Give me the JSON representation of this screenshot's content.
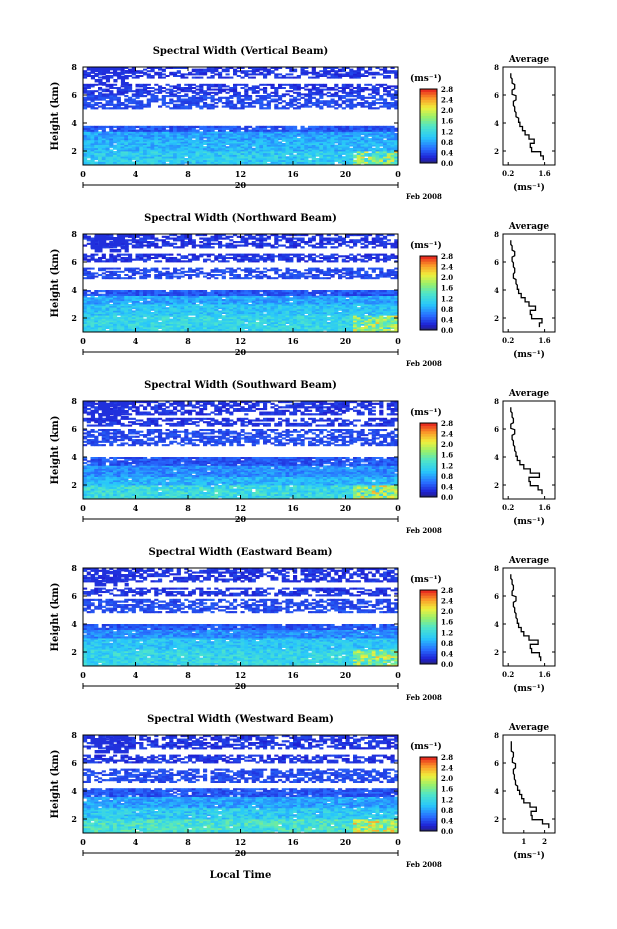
{
  "chart_data": [
    {
      "type": "heatmap",
      "title": "Spectral Width (Vertical Beam)",
      "ylabel": "Height (km)",
      "x_ticks": [
        "0",
        "4",
        "8",
        "12",
        "16",
        "20",
        "0"
      ],
      "y_ticks": [
        "2",
        "4",
        "6",
        "8"
      ],
      "xlim": [
        0,
        24
      ],
      "ylim": [
        1,
        8
      ],
      "day_label": "20",
      "date_label": "Feb 2008",
      "colorbar": {
        "unit": "(ms⁻¹)",
        "ticks": [
          "0.0",
          "0.4",
          "0.8",
          "1.2",
          "1.6",
          "2.0",
          "2.4",
          "2.8"
        ],
        "range": [
          0,
          2.8
        ]
      },
      "profile": {
        "title": "Average",
        "xlabel": "(ms⁻¹)",
        "x_ticks": [
          "0.2",
          "1.6"
        ],
        "y_ticks": [
          "2",
          "4",
          "6",
          "8"
        ],
        "xlim": [
          0,
          2.0
        ],
        "ylim": [
          1,
          8
        ],
        "height": [
          1.5,
          1.8,
          2.1,
          2.4,
          2.7,
          3.0,
          3.3,
          3.6,
          3.9,
          4.2,
          4.6,
          5.0,
          5.4,
          5.8,
          6.2,
          6.6,
          7.0,
          7.4
        ],
        "values": [
          1.55,
          1.45,
          1.1,
          1.05,
          1.2,
          1.0,
          0.85,
          0.75,
          0.65,
          0.6,
          0.5,
          0.45,
          0.4,
          0.5,
          0.35,
          0.45,
          0.35,
          0.3
        ]
      },
      "layers": [
        {
          "h0": 1.0,
          "h1": 2.0,
          "v0": 0.8,
          "v1": 1.3
        },
        {
          "h0": 2.0,
          "h1": 2.8,
          "v0": 0.7,
          "v1": 1.1
        },
        {
          "h0": 2.8,
          "h1": 3.4,
          "v0": 0.6,
          "v1": 1.0
        },
        {
          "h0": 3.4,
          "h1": 3.8,
          "v0": 0.3,
          "v1": 0.6
        },
        {
          "h0": 5.0,
          "h1": 6.0,
          "v0": 0.3,
          "v1": 0.5
        },
        {
          "h0": 6.0,
          "h1": 6.8,
          "v0": 0.2,
          "v1": 0.4
        },
        {
          "h0": 7.2,
          "h1": 8.0,
          "v0": 0.2,
          "v1": 0.4
        }
      ]
    },
    {
      "type": "heatmap",
      "title": "Spectral Width (Northward Beam)",
      "ylabel": "Height (km)",
      "x_ticks": [
        "0",
        "4",
        "8",
        "12",
        "16",
        "20",
        "0"
      ],
      "y_ticks": [
        "2",
        "4",
        "6",
        "8"
      ],
      "xlim": [
        0,
        24
      ],
      "ylim": [
        1,
        8
      ],
      "day_label": "20",
      "date_label": "Feb 2008",
      "colorbar": {
        "unit": "(ms⁻¹)",
        "ticks": [
          "0.0",
          "0.4",
          "0.8",
          "1.2",
          "1.6",
          "2.0",
          "2.4",
          "2.8"
        ],
        "range": [
          0,
          2.8
        ]
      },
      "profile": {
        "title": "Average",
        "xlabel": "(ms⁻¹)",
        "x_ticks": [
          "0.2",
          "1.6"
        ],
        "y_ticks": [
          "2",
          "4",
          "6",
          "8"
        ],
        "xlim": [
          0,
          2.0
        ],
        "ylim": [
          1,
          8
        ],
        "height": [
          1.5,
          1.8,
          2.1,
          2.4,
          2.7,
          3.0,
          3.3,
          3.6,
          3.9,
          4.2,
          4.6,
          5.0,
          5.4,
          5.8,
          6.2,
          6.6,
          7.0,
          7.4
        ],
        "values": [
          1.4,
          1.5,
          1.1,
          1.05,
          1.25,
          1.0,
          0.85,
          0.7,
          0.6,
          0.55,
          0.5,
          0.4,
          0.45,
          0.4,
          0.35,
          0.45,
          0.35,
          0.3
        ]
      },
      "layers": [
        {
          "h0": 1.0,
          "h1": 2.2,
          "v0": 0.9,
          "v1": 1.4
        },
        {
          "h0": 2.2,
          "h1": 3.0,
          "v0": 0.8,
          "v1": 1.2
        },
        {
          "h0": 3.0,
          "h1": 3.6,
          "v0": 0.6,
          "v1": 1.0
        },
        {
          "h0": 3.6,
          "h1": 4.0,
          "v0": 0.3,
          "v1": 0.6
        },
        {
          "h0": 4.8,
          "h1": 5.6,
          "v0": 0.3,
          "v1": 0.5
        },
        {
          "h0": 6.0,
          "h1": 6.6,
          "v0": 0.2,
          "v1": 0.4
        },
        {
          "h0": 7.0,
          "h1": 8.0,
          "v0": 0.2,
          "v1": 0.4
        }
      ]
    },
    {
      "type": "heatmap",
      "title": "Spectral Width (Southward Beam)",
      "ylabel": "Height (km)",
      "x_ticks": [
        "0",
        "4",
        "8",
        "12",
        "16",
        "20",
        "0"
      ],
      "y_ticks": [
        "2",
        "4",
        "6",
        "8"
      ],
      "xlim": [
        0,
        24
      ],
      "ylim": [
        1,
        8
      ],
      "day_label": "20",
      "date_label": "Feb 2008",
      "colorbar": {
        "unit": "(ms⁻¹)",
        "ticks": [
          "0.0",
          "0.4",
          "0.8",
          "1.2",
          "1.6",
          "2.0",
          "2.4",
          "2.8"
        ],
        "range": [
          0,
          2.8
        ]
      },
      "profile": {
        "title": "Average",
        "xlabel": "(ms⁻¹)",
        "x_ticks": [
          "0.2",
          "1.6"
        ],
        "y_ticks": [
          "2",
          "4",
          "6",
          "8"
        ],
        "xlim": [
          0,
          2.0
        ],
        "ylim": [
          1,
          8
        ],
        "height": [
          1.5,
          1.8,
          2.1,
          2.4,
          2.7,
          3.0,
          3.3,
          3.6,
          3.9,
          4.2,
          4.6,
          5.0,
          5.4,
          5.8,
          6.2,
          6.6,
          7.0,
          7.4
        ],
        "values": [
          1.5,
          1.35,
          1.05,
          1.0,
          1.4,
          1.05,
          0.8,
          0.65,
          0.55,
          0.5,
          0.45,
          0.4,
          0.35,
          0.45,
          0.3,
          0.4,
          0.35,
          0.3
        ]
      },
      "layers": [
        {
          "h0": 1.0,
          "h1": 2.0,
          "v0": 0.9,
          "v1": 1.5
        },
        {
          "h0": 2.0,
          "h1": 2.6,
          "v0": 0.7,
          "v1": 1.1
        },
        {
          "h0": 2.6,
          "h1": 3.4,
          "v0": 0.5,
          "v1": 0.9
        },
        {
          "h0": 3.4,
          "h1": 4.0,
          "v0": 0.3,
          "v1": 0.6
        },
        {
          "h0": 4.8,
          "h1": 6.0,
          "v0": 0.3,
          "v1": 0.5
        },
        {
          "h0": 6.2,
          "h1": 6.8,
          "v0": 0.2,
          "v1": 0.4
        },
        {
          "h0": 7.0,
          "h1": 8.0,
          "v0": 0.2,
          "v1": 0.4
        }
      ]
    },
    {
      "type": "heatmap",
      "title": "Spectral Width (Eastward Beam)",
      "ylabel": "Height (km)",
      "x_ticks": [
        "0",
        "4",
        "8",
        "12",
        "16",
        "20",
        "0"
      ],
      "y_ticks": [
        "2",
        "4",
        "6",
        "8"
      ],
      "xlim": [
        0,
        24
      ],
      "ylim": [
        1,
        8
      ],
      "day_label": "20",
      "date_label": "Feb 2008",
      "colorbar": {
        "unit": "(ms⁻¹)",
        "ticks": [
          "0.0",
          "0.4",
          "0.8",
          "1.2",
          "1.6",
          "2.0",
          "2.4",
          "2.8"
        ],
        "range": [
          0,
          2.8
        ]
      },
      "profile": {
        "title": "Average",
        "xlabel": "(ms⁻¹)",
        "x_ticks": [
          "0.2",
          "1.6"
        ],
        "y_ticks": [
          "2",
          "4",
          "6",
          "8"
        ],
        "xlim": [
          0,
          2.0
        ],
        "ylim": [
          1,
          8
        ],
        "height": [
          1.5,
          1.8,
          2.1,
          2.4,
          2.7,
          3.0,
          3.3,
          3.6,
          3.9,
          4.2,
          4.6,
          5.0,
          5.4,
          5.8,
          6.2,
          6.6,
          7.0,
          7.4
        ],
        "values": [
          1.45,
          1.4,
          1.1,
          1.05,
          1.35,
          1.0,
          0.8,
          0.7,
          0.6,
          0.55,
          0.5,
          0.45,
          0.4,
          0.5,
          0.35,
          0.4,
          0.35,
          0.3
        ]
      },
      "layers": [
        {
          "h0": 1.0,
          "h1": 2.2,
          "v0": 0.9,
          "v1": 1.4
        },
        {
          "h0": 2.2,
          "h1": 3.0,
          "v0": 0.8,
          "v1": 1.2
        },
        {
          "h0": 3.0,
          "h1": 3.6,
          "v0": 0.5,
          "v1": 0.9
        },
        {
          "h0": 3.6,
          "h1": 4.0,
          "v0": 0.3,
          "v1": 0.6
        },
        {
          "h0": 4.8,
          "h1": 5.8,
          "v0": 0.3,
          "v1": 0.5
        },
        {
          "h0": 6.0,
          "h1": 6.6,
          "v0": 0.2,
          "v1": 0.4
        },
        {
          "h0": 7.0,
          "h1": 8.0,
          "v0": 0.2,
          "v1": 0.4
        }
      ]
    },
    {
      "type": "heatmap",
      "title": "Spectral Width (Westward Beam)",
      "ylabel": "Height (km)",
      "xlabel": "Local Time",
      "x_ticks": [
        "0",
        "4",
        "8",
        "12",
        "16",
        "20",
        "0"
      ],
      "y_ticks": [
        "2",
        "4",
        "6",
        "8"
      ],
      "xlim": [
        0,
        24
      ],
      "ylim": [
        1,
        8
      ],
      "day_label": "20",
      "date_label": "Feb 2008",
      "colorbar": {
        "unit": "(ms⁻¹)",
        "ticks": [
          "0.0",
          "0.4",
          "0.8",
          "1.2",
          "1.6",
          "2.0",
          "2.4",
          "2.8"
        ],
        "range": [
          0,
          2.8
        ]
      },
      "profile": {
        "title": "Average",
        "xlabel": "(ms⁻¹)",
        "x_ticks": [
          "1",
          "2"
        ],
        "y_ticks": [
          "2",
          "4",
          "6",
          "8"
        ],
        "xlim": [
          0,
          2.5
        ],
        "ylim": [
          1,
          8
        ],
        "height": [
          1.5,
          1.8,
          2.1,
          2.4,
          2.7,
          3.0,
          3.3,
          3.6,
          3.9,
          4.2,
          4.6,
          5.0,
          5.4,
          5.8,
          6.2,
          6.6,
          7.0,
          7.4
        ],
        "values": [
          2.2,
          1.9,
          1.4,
          1.35,
          1.6,
          1.3,
          1.0,
          0.9,
          0.8,
          0.7,
          0.6,
          0.55,
          0.5,
          0.6,
          0.45,
          0.5,
          0.4,
          0.4
        ]
      },
      "layers": [
        {
          "h0": 1.0,
          "h1": 2.0,
          "v0": 1.0,
          "v1": 1.6
        },
        {
          "h0": 2.0,
          "h1": 2.8,
          "v0": 0.8,
          "v1": 1.3
        },
        {
          "h0": 2.8,
          "h1": 3.6,
          "v0": 0.6,
          "v1": 1.0
        },
        {
          "h0": 3.6,
          "h1": 4.2,
          "v0": 0.3,
          "v1": 0.6
        },
        {
          "h0": 4.6,
          "h1": 5.6,
          "v0": 0.3,
          "v1": 0.5
        },
        {
          "h0": 6.0,
          "h1": 6.6,
          "v0": 0.2,
          "v1": 0.4
        },
        {
          "h0": 7.0,
          "h1": 8.0,
          "v0": 0.2,
          "v1": 0.4
        }
      ]
    }
  ]
}
